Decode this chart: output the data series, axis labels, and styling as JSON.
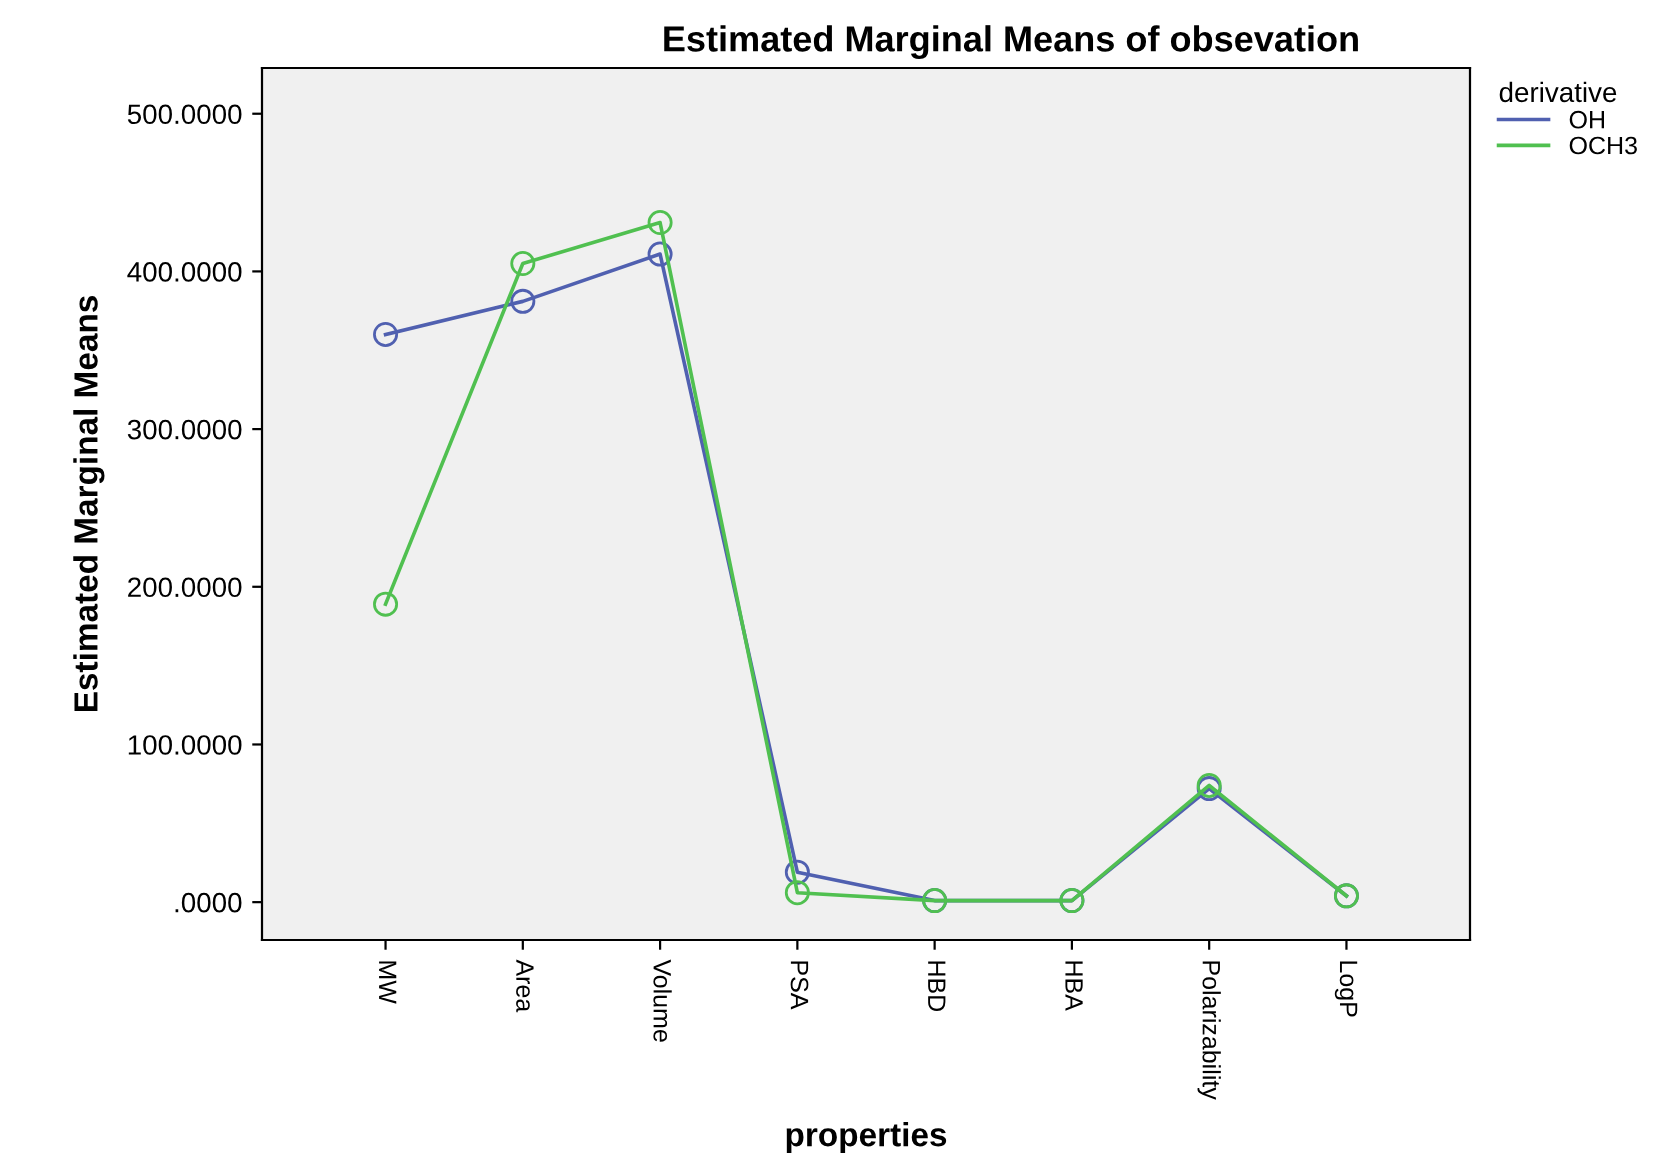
{
  "chart_data": {
    "type": "line",
    "title": "Estimated Marginal Means of obsevation",
    "xlabel": "properties",
    "ylabel": "Estimated Marginal Means",
    "legend_title": "derivative",
    "categories": [
      "MW",
      "Area",
      "Volume",
      "PSA",
      "HBD",
      "HBA",
      "Polarizability",
      "LogP"
    ],
    "series": [
      {
        "name": "OH",
        "color": "#5060b0",
        "values": [
          360,
          381,
          411,
          19,
          1,
          1,
          72,
          4
        ]
      },
      {
        "name": "OCH3",
        "color": "#50c050",
        "values": [
          189,
          405,
          431,
          6,
          1,
          1,
          74,
          4
        ]
      }
    ],
    "ylim": [
      -24,
      529
    ],
    "yticks": [
      {
        "value": 0,
        "label": ".0000"
      },
      {
        "value": 100,
        "label": "100.0000"
      },
      {
        "value": 200,
        "label": "200.0000"
      },
      {
        "value": 300,
        "label": "300.0000"
      },
      {
        "value": 400,
        "label": "400.0000"
      },
      {
        "value": 500,
        "label": "500.0000"
      }
    ],
    "marker": "circle",
    "line_style": "solid",
    "grid": false,
    "legend": "top right"
  }
}
